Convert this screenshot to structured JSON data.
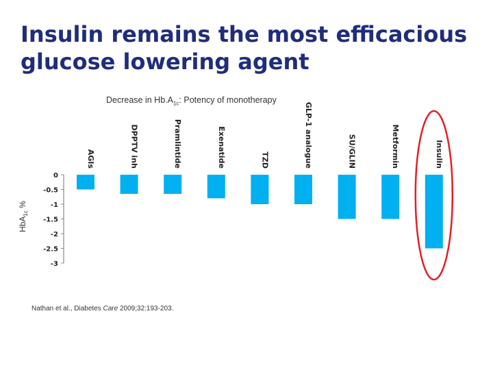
{
  "title": {
    "line1": "Insulin remains the most efficacious",
    "line2": "glucose lowering agent"
  },
  "subtitle": {
    "prefix": "Decrease in Hb.A",
    "sub": "1c",
    "suffix": ": Potency of monotherapy"
  },
  "citation": {
    "authors": "Nathan et al., Diabetes ",
    "journal": "Care",
    "rest": " 2009;32:193-203."
  },
  "chart_data": {
    "type": "bar",
    "title": "",
    "ylabel": {
      "main": "HbA",
      "sub": "1c",
      "unit": " %"
    },
    "categories": [
      "AGIs",
      "DPPTV inh",
      "Pramlintide",
      "Exenatide",
      "TZD",
      "GLP-1 analogue",
      "SU/GLIN",
      "Metformin",
      "Insulin"
    ],
    "values": [
      -0.5,
      -0.65,
      -0.65,
      -0.8,
      -1.0,
      -1.0,
      -1.5,
      -1.5,
      -2.5
    ],
    "ylim": [
      -3,
      0
    ],
    "yticks": [
      0,
      -0.5,
      -1,
      -1.5,
      -2,
      -2.5,
      -3
    ],
    "ytick_labels": [
      "0",
      "-0.5",
      "-1",
      "-1.5",
      "-2",
      "-2.5",
      "-3"
    ],
    "bar_color": "#00b0f0",
    "grid": false,
    "highlight": {
      "category": "Insulin",
      "color": "#e31e24",
      "shape": "ellipse"
    }
  }
}
